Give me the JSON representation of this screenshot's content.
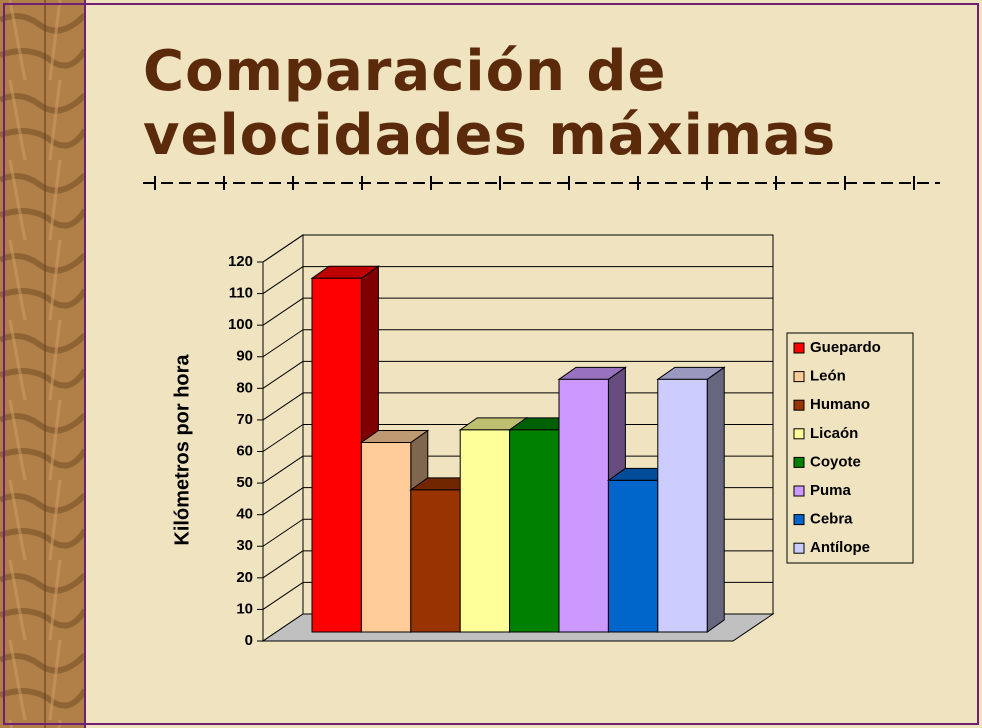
{
  "chart_data": {
    "type": "bar3d",
    "title": "Comparación de velocidades máximas",
    "ylabel": "Kilómetros por hora",
    "categories": [
      "Guepardo",
      "León",
      "Humano",
      "Licaón",
      "Coyote",
      "Puma",
      "Cebra",
      "Antílope"
    ],
    "values": [
      112,
      60,
      45,
      64,
      64,
      80,
      48,
      80
    ],
    "colors": [
      "#ff0000",
      "#ffcc99",
      "#993300",
      "#ffff99",
      "#008000",
      "#cc99ff",
      "#0066cc",
      "#ccccff"
    ],
    "ylim": [
      0,
      120
    ],
    "yticks": [
      0,
      10,
      20,
      30,
      40,
      50,
      60,
      70,
      80,
      90,
      100,
      110,
      120
    ],
    "grid": true,
    "legend": "right"
  }
}
